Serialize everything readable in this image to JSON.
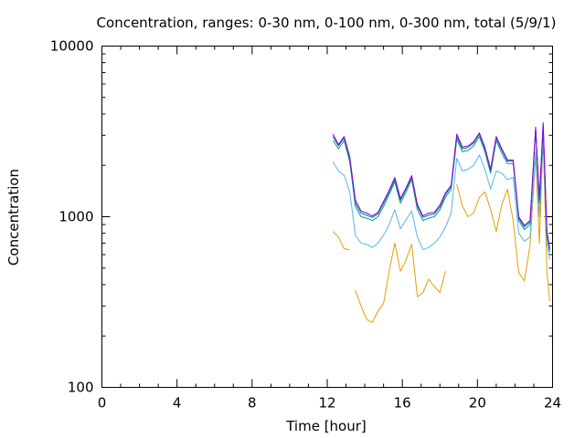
{
  "chart_data": {
    "type": "line",
    "title": "Concentration, ranges: 0-30 nm, 0-100 nm, 0-300 nm, total (5/9/1)",
    "xlabel": "Time [hour]",
    "ylabel": "Concentration",
    "xlim": [
      0,
      24
    ],
    "ylim": [
      100,
      10000
    ],
    "yscale": "log",
    "xticks": [
      "0",
      "4",
      "8",
      "12",
      "16",
      "20",
      "24"
    ],
    "yticks": [
      "100",
      "1000",
      "10000"
    ],
    "legend": "none",
    "series": [
      {
        "color": "#e69f00",
        "x": [
          12.3,
          12.6,
          12.9,
          13.2,
          13.35,
          13.5,
          13.8,
          14.1,
          14.4,
          14.7,
          15.0,
          15.3,
          15.6,
          15.9,
          16.2,
          16.5,
          16.8,
          17.1,
          17.4,
          17.7,
          18.0,
          18.3,
          18.6,
          18.9,
          19.2,
          19.5,
          19.8,
          20.1,
          20.4,
          20.7,
          21.0,
          21.3,
          21.6,
          21.9,
          22.2,
          22.5,
          22.8,
          23.1,
          23.3,
          23.5,
          23.7,
          23.85
        ],
        "y": [
          820,
          760,
          650,
          640,
          null,
          370,
          300,
          250,
          240,
          280,
          310,
          480,
          700,
          480,
          560,
          690,
          340,
          360,
          430,
          390,
          360,
          480,
          null,
          1550,
          1150,
          1000,
          1050,
          1300,
          1400,
          1100,
          820,
          1180,
          1450,
          950,
          470,
          420,
          680,
          2300,
          700,
          2900,
          480,
          320
        ]
      },
      {
        "color": "#56b4e9",
        "x": [
          12.3,
          12.6,
          12.9,
          13.2,
          13.5,
          13.8,
          14.1,
          14.4,
          14.7,
          15.0,
          15.3,
          15.6,
          15.9,
          16.2,
          16.5,
          16.8,
          17.1,
          17.4,
          17.7,
          18.0,
          18.3,
          18.6,
          18.9,
          19.2,
          19.5,
          19.8,
          20.1,
          20.4,
          20.7,
          21.0,
          21.3,
          21.6,
          21.9,
          22.2,
          22.5,
          22.8,
          23.1,
          23.3,
          23.5,
          23.7,
          23.85
        ],
        "y": [
          2100,
          1850,
          1750,
          1400,
          780,
          700,
          690,
          660,
          700,
          780,
          900,
          1100,
          850,
          960,
          1080,
          760,
          640,
          660,
          700,
          760,
          870,
          1050,
          2200,
          1850,
          1900,
          2000,
          2300,
          1900,
          1450,
          1850,
          1800,
          1650,
          1700,
          800,
          720,
          760,
          2400,
          1000,
          2800,
          700,
          560
        ]
      },
      {
        "color": "#009e73",
        "x": [
          12.3,
          12.6,
          12.9,
          13.2,
          13.5,
          13.8,
          14.1,
          14.4,
          14.7,
          15.0,
          15.3,
          15.6,
          15.9,
          16.2,
          16.5,
          16.8,
          17.1,
          17.4,
          17.7,
          18.0,
          18.3,
          18.6,
          18.9,
          19.2,
          19.5,
          19.8,
          20.1,
          20.4,
          20.7,
          21.0,
          21.3,
          21.6,
          21.9,
          22.2,
          22.5,
          22.8,
          23.1,
          23.3,
          23.5,
          23.7,
          23.85
        ],
        "y": [
          2800,
          2500,
          2800,
          2100,
          1150,
          1000,
          980,
          950,
          1000,
          1150,
          1350,
          1600,
          1200,
          1400,
          1650,
          1100,
          950,
          980,
          1000,
          1100,
          1300,
          1450,
          2850,
          2400,
          2450,
          2600,
          2950,
          2400,
          1800,
          2800,
          2350,
          2050,
          2050,
          950,
          840,
          900,
          3200,
          1200,
          3400,
          780,
          620
        ]
      },
      {
        "color": "#0072b2",
        "x": [
          12.3,
          12.6,
          12.9,
          13.2,
          13.5,
          13.8,
          14.1,
          14.4,
          14.7,
          15.0,
          15.3,
          15.6,
          15.9,
          16.2,
          16.5,
          16.8,
          17.1,
          17.4,
          17.7,
          18.0,
          18.3,
          18.6,
          18.9,
          19.2,
          19.5,
          19.8,
          20.1,
          20.4,
          20.7,
          21.0,
          21.3,
          21.6,
          21.9,
          22.2,
          22.5,
          22.8,
          23.1,
          23.3,
          23.5,
          23.7,
          23.85
        ],
        "y": [
          2950,
          2600,
          2900,
          2200,
          1200,
          1050,
          1020,
          990,
          1040,
          1200,
          1400,
          1650,
          1250,
          1450,
          1700,
          1150,
          990,
          1020,
          1040,
          1140,
          1350,
          1500,
          2950,
          2500,
          2550,
          2700,
          3050,
          2500,
          1870,
          2900,
          2450,
          2120,
          2120,
          980,
          870,
          930,
          3300,
          1250,
          3500,
          810,
          640
        ]
      },
      {
        "color": "#9400d3",
        "x": [
          12.3,
          12.6,
          12.9,
          13.2,
          13.5,
          13.8,
          14.1,
          14.4,
          14.7,
          15.0,
          15.3,
          15.6,
          15.9,
          16.2,
          16.5,
          16.8,
          17.1,
          17.4,
          17.7,
          18.0,
          18.3,
          18.6,
          18.9,
          19.2,
          19.5,
          19.8,
          20.1,
          20.4,
          20.7,
          21.0,
          21.3,
          21.6,
          21.9,
          22.2,
          22.5,
          22.8,
          23.1,
          23.3,
          23.5,
          23.7,
          23.85
        ],
        "y": [
          3050,
          2650,
          2950,
          2250,
          1250,
          1080,
          1050,
          1010,
          1060,
          1230,
          1430,
          1700,
          1280,
          1480,
          1740,
          1180,
          1010,
          1050,
          1060,
          1170,
          1380,
          1530,
          3050,
          2560,
          2600,
          2750,
          3100,
          2550,
          1900,
          2950,
          2500,
          2150,
          2150,
          1000,
          890,
          950,
          3350,
          1280,
          3550,
          830,
          650
        ]
      }
    ]
  }
}
